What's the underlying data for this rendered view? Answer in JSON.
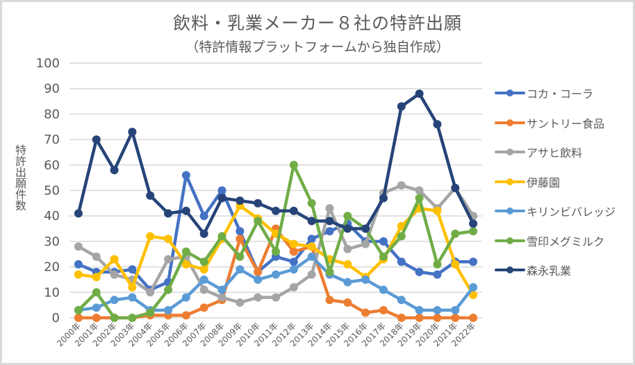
{
  "chart_data": {
    "type": "line",
    "title": "飲料・乳業メーカー８社の特許出願",
    "subtitle": "（特許情報プラットフォームから独自作成）",
    "xlabel": "",
    "ylabel": "特許出願件数",
    "ylim": [
      0,
      100
    ],
    "yticks": [
      "0",
      "10",
      "20",
      "30",
      "40",
      "50",
      "60",
      "70",
      "80",
      "90",
      "100"
    ],
    "grid": true,
    "legend_position": "right",
    "categories": [
      "2000年",
      "2001年",
      "2002年",
      "2003年",
      "2004年",
      "2005年",
      "2006年",
      "2007年",
      "2008年",
      "2009年",
      "2010年",
      "2011年",
      "2012年",
      "2013年",
      "2014年",
      "2015年",
      "2016年",
      "2017年",
      "2018年",
      "2019年",
      "2020年",
      "2021年",
      "2022年"
    ],
    "series": [
      {
        "name": "コカ・コーラ",
        "color": "#4472c4",
        "values": [
          21,
          18,
          18,
          19,
          11,
          14,
          56,
          40,
          50,
          34,
          18,
          24,
          22,
          31,
          34,
          37,
          30,
          30,
          22,
          18,
          17,
          22,
          22
        ]
      },
      {
        "name": "サントリー食品",
        "color": "#ed7d31",
        "values": [
          0,
          0,
          0,
          0,
          1,
          1,
          1,
          4,
          7,
          31,
          18,
          35,
          26,
          28,
          7,
          6,
          2,
          3,
          0,
          0,
          0,
          0,
          0
        ]
      },
      {
        "name": "アサヒ飲料",
        "color": "#a5a5a5",
        "values": [
          28,
          24,
          17,
          15,
          10,
          23,
          24,
          11,
          8,
          6,
          8,
          8,
          12,
          17,
          43,
          27,
          29,
          49,
          52,
          50,
          43,
          51,
          40
        ]
      },
      {
        "name": "伊藤園",
        "color": "#ffc000",
        "values": [
          17,
          16,
          23,
          12,
          32,
          31,
          21,
          19,
          31,
          44,
          39,
          33,
          29,
          28,
          23,
          21,
          16,
          23,
          36,
          43,
          42,
          21,
          9
        ]
      },
      {
        "name": "キリンビバレッジ",
        "color": "#5b9bd5",
        "values": [
          3,
          4,
          7,
          8,
          3,
          3,
          8,
          15,
          11,
          19,
          15,
          17,
          19,
          24,
          17,
          14,
          15,
          11,
          7,
          3,
          3,
          3,
          12
        ]
      },
      {
        "name": "雪印メグミルク",
        "color": "#70ad47",
        "values": [
          3,
          10,
          0,
          0,
          2,
          11,
          26,
          22,
          32,
          24,
          38,
          26,
          60,
          45,
          18,
          40,
          35,
          24,
          32,
          47,
          21,
          33,
          34
        ]
      },
      {
        "name": "森永乳業",
        "color": "#264478",
        "values": [
          41,
          70,
          58,
          73,
          48,
          41,
          42,
          33,
          47,
          46,
          45,
          42,
          42,
          38,
          38,
          35,
          35,
          47,
          83,
          88,
          76,
          51,
          37
        ]
      }
    ]
  }
}
